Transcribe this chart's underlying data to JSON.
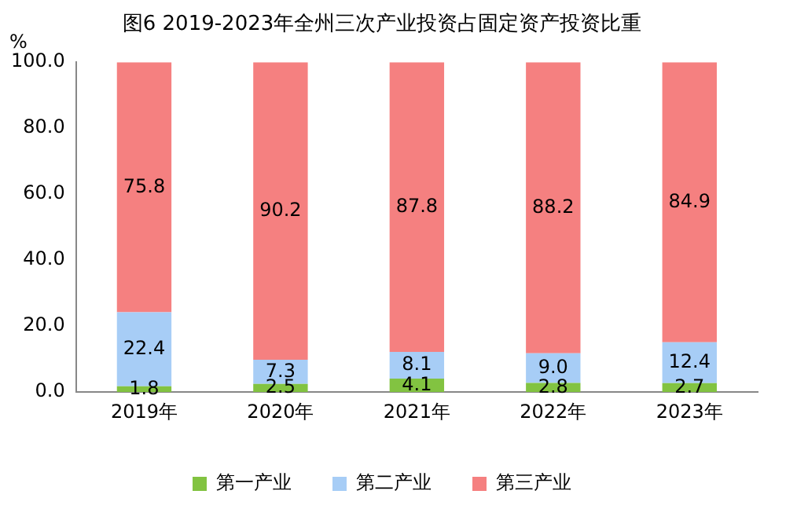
{
  "chart_data": {
    "type": "bar",
    "title": "图6 2019-2023年全州三次产业投资占固定资产投资比重",
    "ylabel": "%",
    "categories": [
      "2019年",
      "2020年",
      "2021年",
      "2022年",
      "2023年"
    ],
    "stacked": true,
    "legend": "bottom",
    "grid": false,
    "ylim": [
      0,
      100
    ],
    "yticks": [
      {
        "value": 0,
        "label": "0.0"
      },
      {
        "value": 20,
        "label": "20.0"
      },
      {
        "value": 40,
        "label": "40.0"
      },
      {
        "value": 60,
        "label": "60.0"
      },
      {
        "value": 80,
        "label": "80.0"
      },
      {
        "value": 100,
        "label": "100.0"
      }
    ],
    "series": [
      {
        "name": "第一产业",
        "color": "#82c341",
        "values": [
          1.8,
          2.5,
          4.1,
          2.8,
          2.7
        ],
        "value_labels": [
          "1.8",
          "2.5",
          "4.1",
          "2.8",
          "2.7"
        ]
      },
      {
        "name": "第二产业",
        "color": "#a7cdf6",
        "values": [
          22.4,
          7.3,
          8.1,
          9.0,
          12.4
        ],
        "value_labels": [
          "22.4",
          "7.3",
          "8.1",
          "9.0",
          "12.4"
        ]
      },
      {
        "name": "第三产业",
        "color": "#f58080",
        "values": [
          75.8,
          90.2,
          87.8,
          88.2,
          84.9
        ],
        "value_labels": [
          "75.8",
          "90.2",
          "87.8",
          "88.2",
          "84.9"
        ]
      }
    ]
  }
}
